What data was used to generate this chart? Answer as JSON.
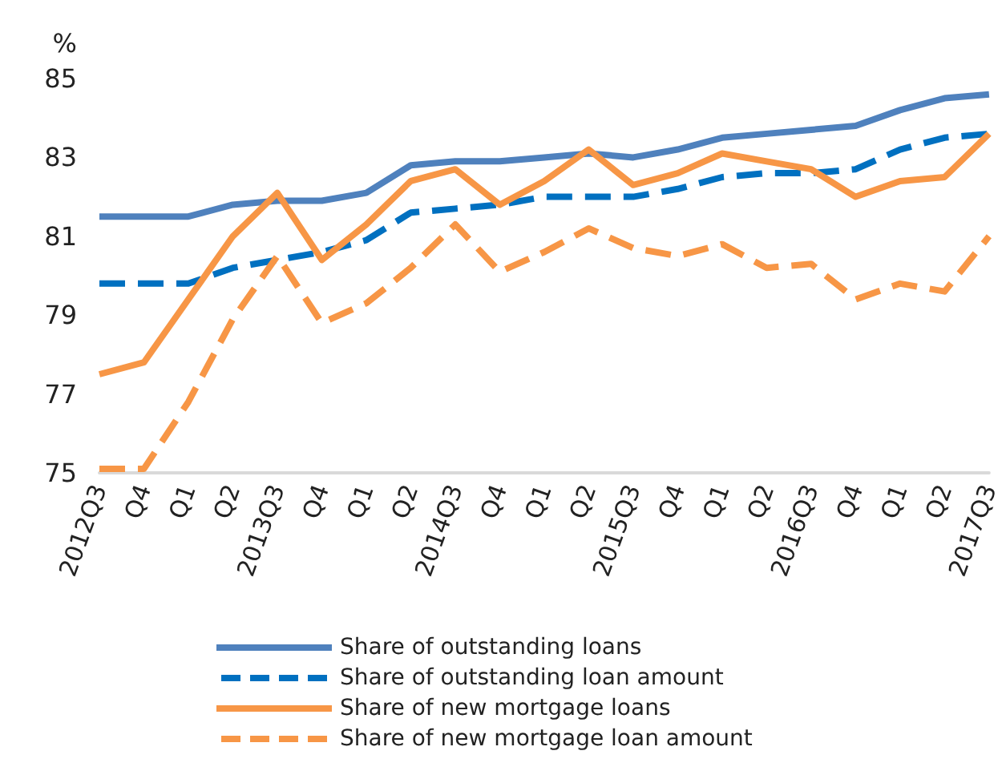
{
  "chart_data": {
    "type": "line",
    "ylabel": "%",
    "categories": [
      "2012Q3",
      "Q4",
      "Q1",
      "Q2",
      "2013Q3",
      "Q4",
      "Q1",
      "Q2",
      "2014Q3",
      "Q4",
      "Q1",
      "Q2",
      "2015Q3",
      "Q4",
      "Q1",
      "Q2",
      "2016Q3",
      "Q4",
      "Q1",
      "Q2",
      "2017Q3"
    ],
    "series": [
      {
        "name": "Share of outstanding loans",
        "color": "#4f81bd",
        "line_style": "solid",
        "values": [
          81.5,
          81.5,
          81.5,
          81.8,
          81.9,
          81.9,
          82.1,
          82.8,
          82.9,
          82.9,
          83.0,
          83.1,
          83.0,
          83.2,
          83.5,
          83.6,
          83.7,
          83.8,
          84.2,
          84.5,
          84.6
        ]
      },
      {
        "name": "Share of outstanding loan amount",
        "color": "#0070c0",
        "line_style": "dashed",
        "values": [
          79.8,
          79.8,
          79.8,
          80.2,
          80.4,
          80.6,
          80.9,
          81.6,
          81.7,
          81.8,
          82.0,
          82.0,
          82.0,
          82.2,
          82.5,
          82.6,
          82.6,
          82.7,
          83.2,
          83.5,
          83.6
        ]
      },
      {
        "name": "Share of new mortgage loans",
        "color": "#f79646",
        "line_style": "solid",
        "values": [
          77.5,
          77.8,
          79.4,
          81.0,
          82.1,
          80.4,
          81.3,
          82.4,
          82.7,
          81.8,
          82.4,
          83.2,
          82.3,
          82.6,
          83.1,
          82.9,
          82.7,
          82.0,
          82.4,
          82.5,
          83.6
        ]
      },
      {
        "name": "Share of new mortgage loan amount",
        "color": "#f79646",
        "line_style": "dashed",
        "values": [
          75.1,
          75.1,
          76.8,
          78.9,
          80.5,
          78.8,
          79.3,
          80.2,
          81.3,
          80.1,
          80.6,
          81.2,
          80.7,
          80.5,
          80.8,
          80.2,
          80.3,
          79.4,
          79.8,
          79.6,
          81.0
        ]
      }
    ],
    "ylim": [
      75,
      85
    ],
    "yticks": [
      75,
      77,
      79,
      81,
      83,
      85
    ],
    "grid": false,
    "legend": "bottom",
    "marker": "none"
  }
}
